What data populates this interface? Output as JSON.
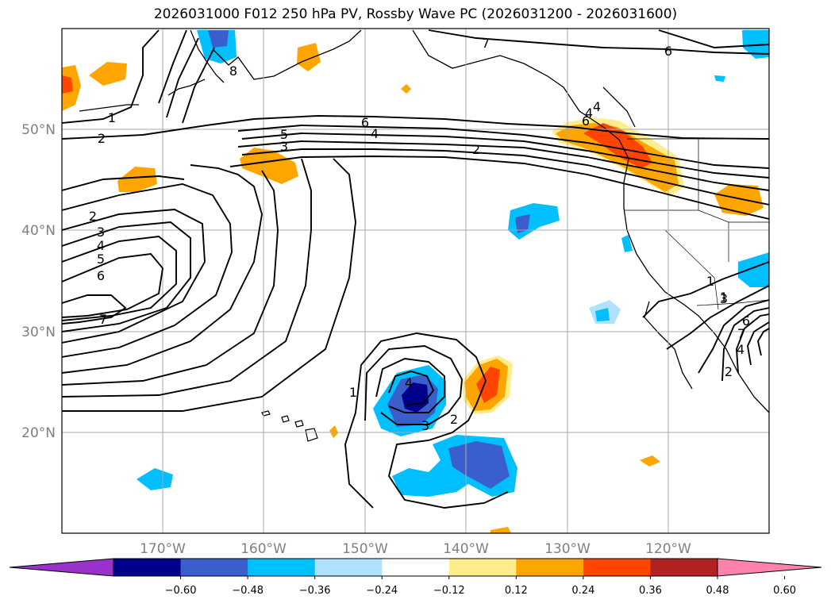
{
  "title": "2026031000 F012 250 hPa PV, Rossby Wave PC (2026031200 - 2026031600)",
  "lat_labels": [
    "50°N",
    "40°N",
    "30°N",
    "20°N"
  ],
  "lon_labels": [
    "170°W",
    "160°W",
    "150°W",
    "140°W",
    "130°W",
    "120°W"
  ],
  "colorbar": {
    "colors": [
      "#9932cc",
      "#00008b",
      "#3a5fcd",
      "#00bfff",
      "#b0e2ff",
      "#ffffff",
      "#ffec8b",
      "#ffa500",
      "#ff4500",
      "#b22222",
      "#ff82ab"
    ],
    "tick_labels": [
      "−0.60",
      "−0.48",
      "−0.36",
      "−0.24",
      "−0.12",
      "0.12",
      "0.24",
      "0.36",
      "0.48",
      "0.60"
    ]
  },
  "contour_labels": [
    "1",
    "2",
    "3",
    "4",
    "5",
    "6",
    "7",
    "8",
    "6",
    "4",
    "2",
    "1",
    "2",
    "3",
    "4",
    "5",
    "6",
    "7",
    "1",
    "2",
    "3",
    "4",
    "1",
    "2",
    "3",
    "4",
    "6",
    "7",
    "6",
    "4"
  ]
}
